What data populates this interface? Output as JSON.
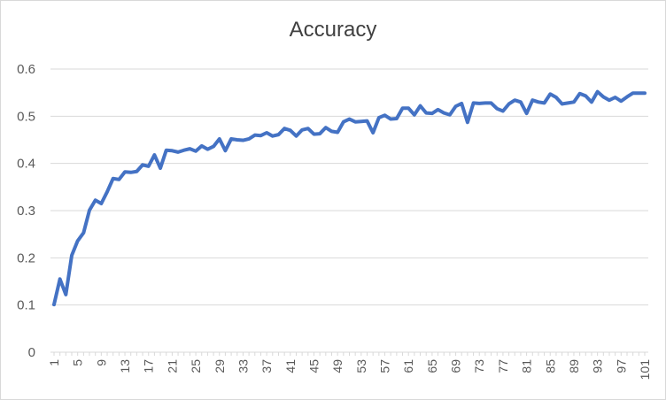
{
  "chart_data": {
    "type": "line",
    "title": "Accuracy",
    "xlabel": "",
    "ylabel": "",
    "ylim": [
      0,
      0.6
    ],
    "yticks": [
      "0",
      "0.1",
      "0.2",
      "0.3",
      "0.4",
      "0.5",
      "0.6"
    ],
    "x_start": 1,
    "x_end": 101,
    "x_tick_labels": [
      "1",
      "5",
      "9",
      "13",
      "17",
      "21",
      "25",
      "29",
      "33",
      "37",
      "41",
      "45",
      "49",
      "53",
      "57",
      "61",
      "65",
      "69",
      "73",
      "77",
      "81",
      "85",
      "89",
      "93",
      "97",
      "101"
    ],
    "grid": true,
    "legend": "none",
    "series": [
      {
        "color": "#4472c4",
        "values": [
          0.101,
          0.155,
          0.122,
          0.205,
          0.236,
          0.253,
          0.301,
          0.322,
          0.315,
          0.34,
          0.368,
          0.366,
          0.382,
          0.381,
          0.383,
          0.397,
          0.394,
          0.418,
          0.39,
          0.428,
          0.427,
          0.424,
          0.428,
          0.431,
          0.426,
          0.437,
          0.43,
          0.436,
          0.452,
          0.427,
          0.452,
          0.45,
          0.449,
          0.452,
          0.46,
          0.459,
          0.465,
          0.458,
          0.461,
          0.474,
          0.47,
          0.458,
          0.471,
          0.474,
          0.462,
          0.463,
          0.476,
          0.468,
          0.466,
          0.488,
          0.494,
          0.488,
          0.489,
          0.49,
          0.465,
          0.497,
          0.502,
          0.494,
          0.495,
          0.517,
          0.517,
          0.503,
          0.522,
          0.507,
          0.506,
          0.514,
          0.507,
          0.503,
          0.521,
          0.527,
          0.487,
          0.528,
          0.527,
          0.528,
          0.528,
          0.516,
          0.511,
          0.526,
          0.534,
          0.53,
          0.506,
          0.534,
          0.53,
          0.528,
          0.547,
          0.54,
          0.526,
          0.528,
          0.53,
          0.548,
          0.543,
          0.53,
          0.552,
          0.541,
          0.534,
          0.54,
          0.532,
          0.541,
          0.549,
          0.549,
          0.549
        ]
      }
    ]
  }
}
